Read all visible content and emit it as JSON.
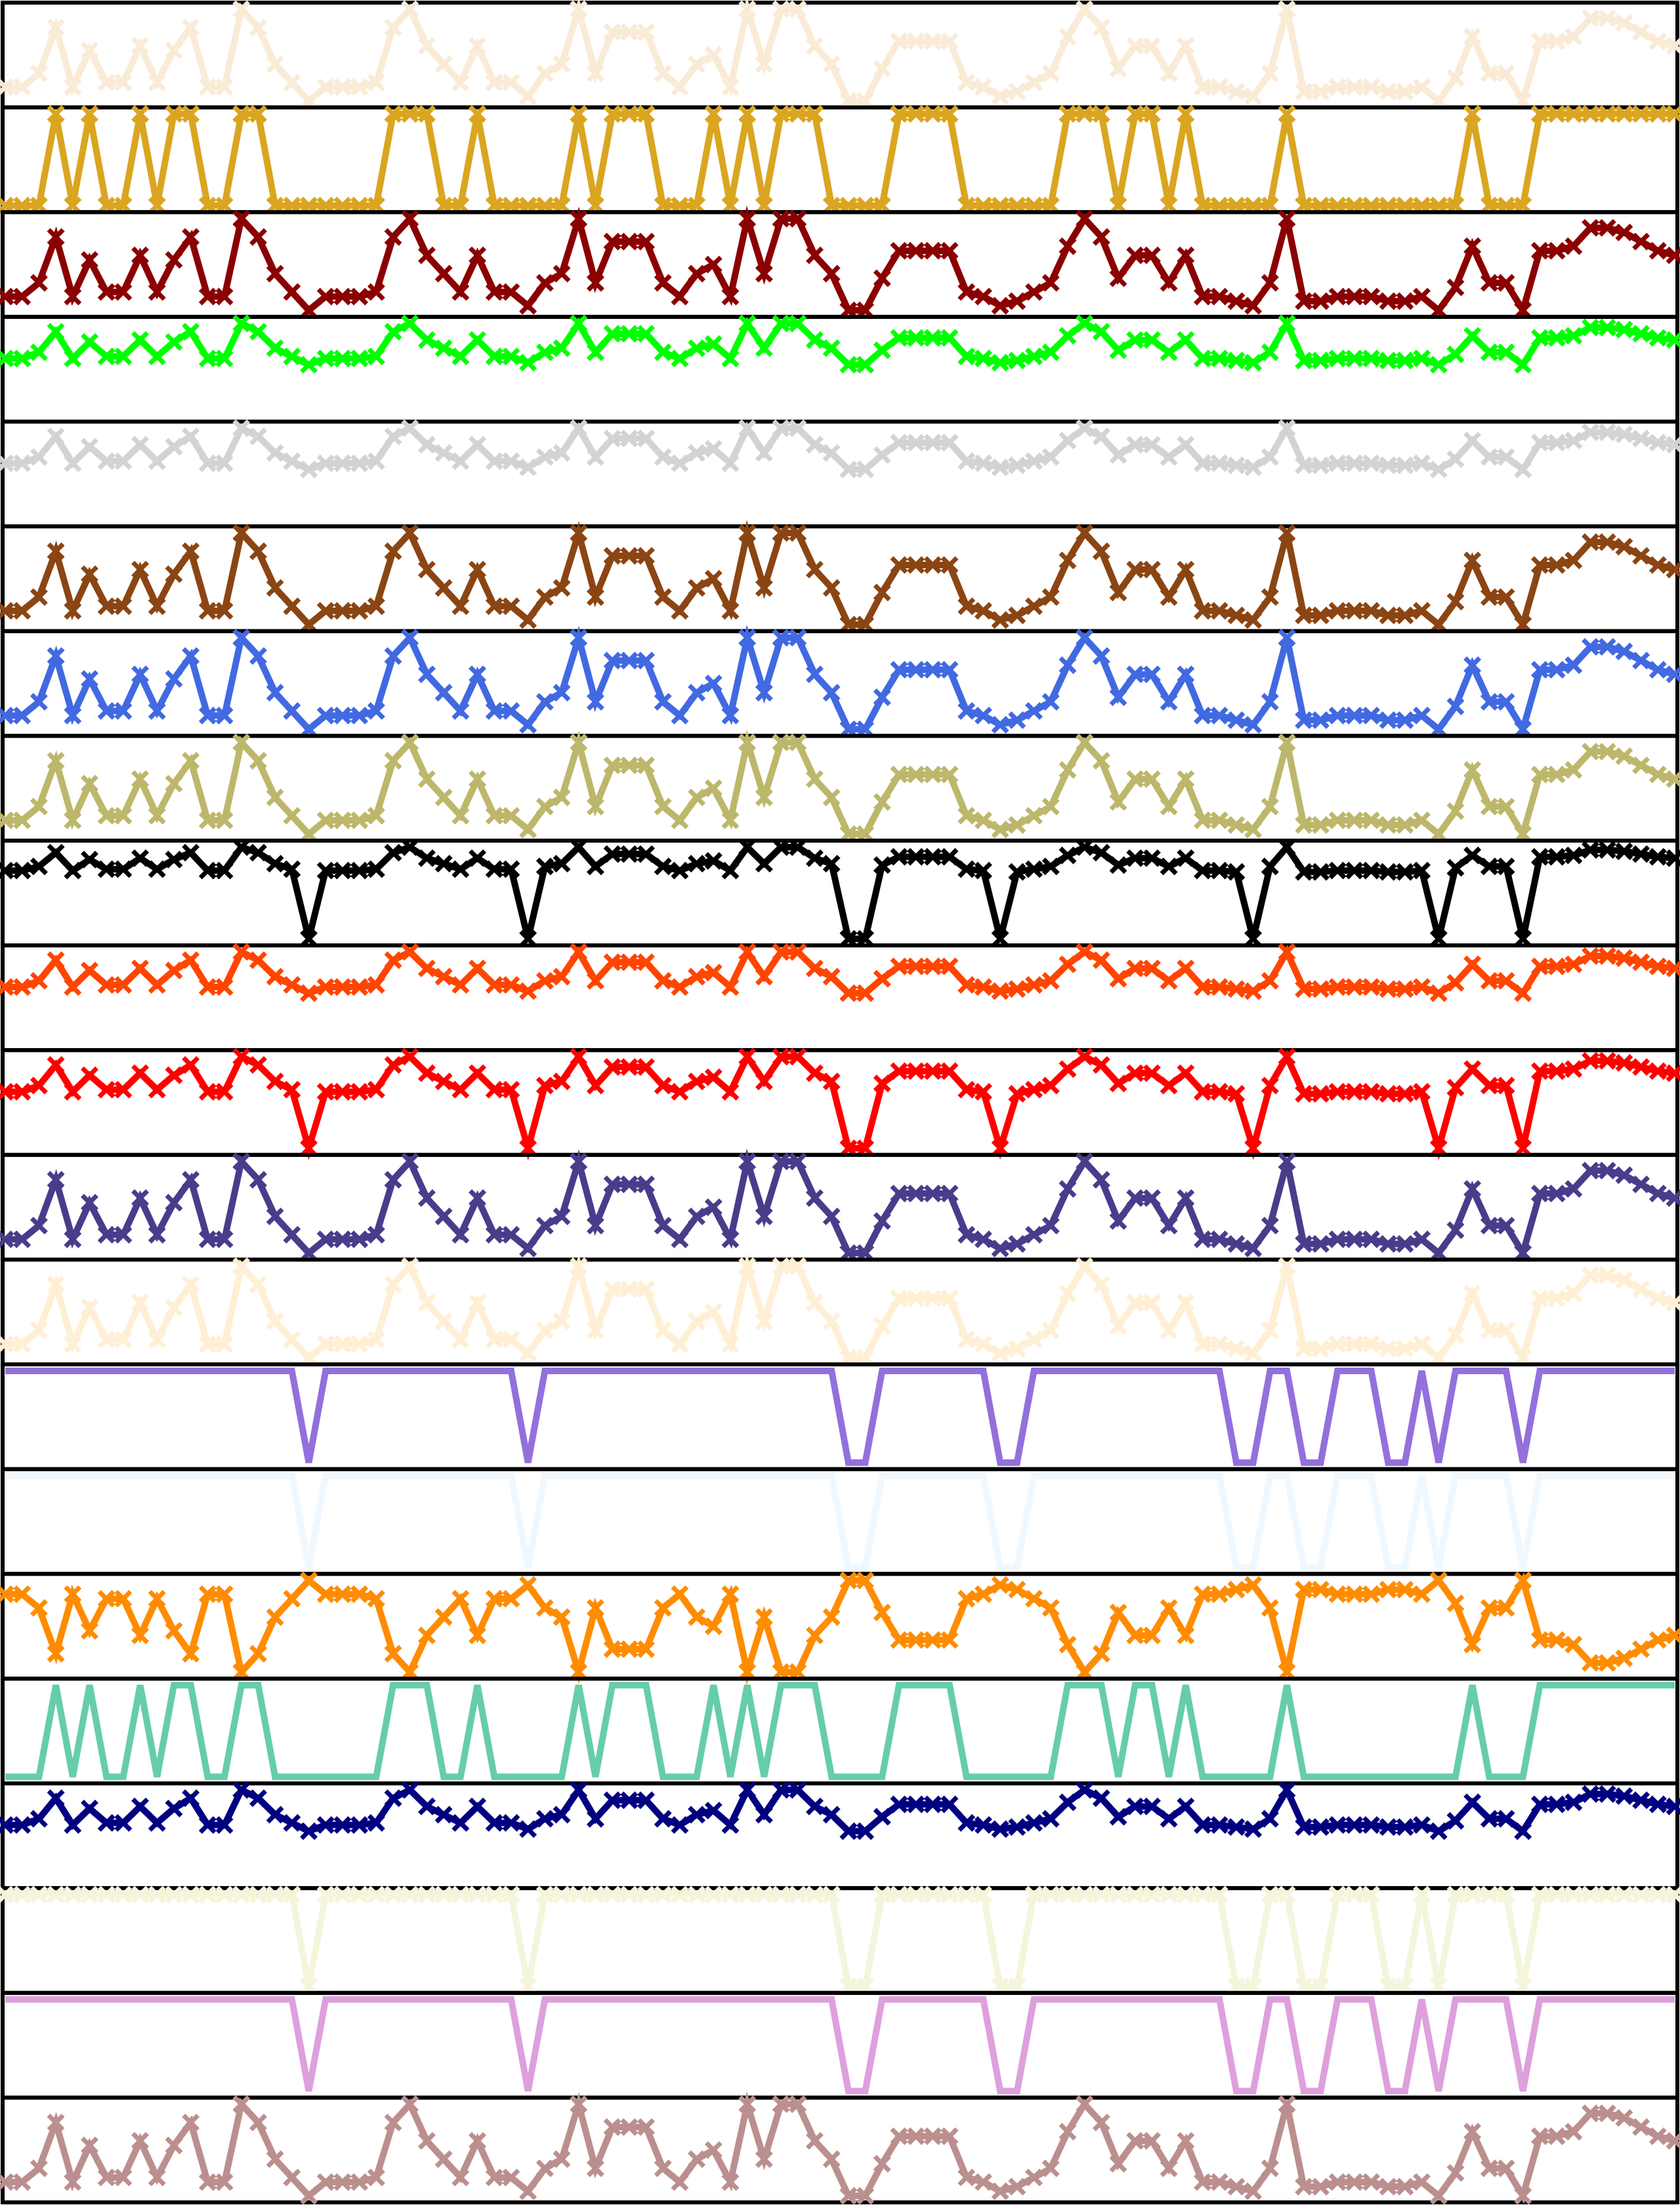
{
  "chart_data": {
    "type": "line",
    "title": "",
    "xlabel": "",
    "ylabel": "",
    "marker": "x",
    "axes_frame": true,
    "grid": false,
    "legend": "none",
    "x": [
      0,
      1,
      2,
      3,
      4,
      5,
      6,
      7,
      8,
      9,
      10,
      11,
      12,
      13,
      14,
      15,
      16,
      17,
      18,
      19,
      20,
      21,
      22,
      23,
      24,
      25,
      26,
      27,
      28,
      29,
      30,
      31,
      32,
      33,
      34,
      35,
      36,
      37,
      38,
      39,
      40,
      41,
      42,
      43,
      44,
      45,
      46,
      47,
      48,
      49,
      50,
      51,
      52,
      53,
      54,
      55,
      56,
      57,
      58,
      59,
      60,
      61,
      62,
      63,
      64,
      65,
      66,
      67,
      68,
      69,
      70,
      71,
      72,
      73,
      74,
      75,
      76,
      77,
      78,
      79,
      80,
      81,
      82,
      83,
      84,
      85,
      86,
      87,
      88,
      89,
      90,
      91,
      92,
      93,
      94,
      95,
      96,
      97,
      98,
      99
    ],
    "base": [
      0.15,
      0.15,
      0.3,
      0.8,
      0.15,
      0.55,
      0.2,
      0.2,
      0.6,
      0.2,
      0.55,
      0.8,
      0.15,
      0.15,
      1.0,
      0.8,
      0.4,
      0.2,
      0.0,
      0.15,
      0.15,
      0.15,
      0.2,
      0.8,
      1.0,
      0.6,
      0.4,
      0.2,
      0.6,
      0.2,
      0.2,
      0.05,
      0.3,
      0.4,
      1.0,
      0.3,
      0.75,
      0.75,
      0.75,
      0.3,
      0.15,
      0.4,
      0.5,
      0.15,
      1.0,
      0.4,
      1.0,
      1.0,
      0.6,
      0.4,
      0.0,
      0.0,
      0.35,
      0.65,
      0.65,
      0.65,
      0.65,
      0.2,
      0.15,
      0.05,
      0.1,
      0.2,
      0.3,
      0.7,
      1.0,
      0.8,
      0.35,
      0.6,
      0.6,
      0.3,
      0.6,
      0.15,
      0.15,
      0.1,
      0.05,
      0.3,
      1.0,
      0.1,
      0.1,
      0.15,
      0.15,
      0.15,
      0.1,
      0.1,
      0.15,
      0.0,
      0.25,
      0.7,
      0.3,
      0.3,
      0.0,
      0.65,
      0.65,
      0.7,
      0.9,
      0.9,
      0.85,
      0.75,
      0.65,
      0.6
    ],
    "series": [
      {
        "color": "#FAEBD7",
        "mode": "raw",
        "markers": true
      },
      {
        "color": "#DAA520",
        "mode": "binary",
        "markers": true
      },
      {
        "color": "#8B0000",
        "mode": "raw",
        "markers": true
      },
      {
        "color": "#00FF00",
        "mode": "compress",
        "markers": true
      },
      {
        "color": "#D3D3D3",
        "mode": "compress",
        "markers": true
      },
      {
        "color": "#8B4513",
        "mode": "raw",
        "markers": true
      },
      {
        "color": "#4169E1",
        "mode": "raw",
        "markers": true
      },
      {
        "color": "#BDB76B",
        "mode": "raw",
        "markers": true
      },
      {
        "color": "#000000",
        "mode": "softclip",
        "markers": true
      },
      {
        "color": "#FF4500",
        "mode": "compress",
        "markers": true
      },
      {
        "color": "#FF0000",
        "mode": "softclip2",
        "markers": true
      },
      {
        "color": "#483D8B",
        "mode": "raw",
        "markers": true
      },
      {
        "color": "#FFEFD5",
        "mode": "raw",
        "markers": true
      },
      {
        "color": "#9370DB",
        "mode": "clip",
        "markers": false
      },
      {
        "color": "#F0F8FF",
        "mode": "clip",
        "markers": false
      },
      {
        "color": "#FF8C00",
        "mode": "inverse",
        "markers": true
      },
      {
        "color": "#66CDAA",
        "mode": "binary",
        "markers": false
      },
      {
        "color": "#000080",
        "mode": "compress",
        "markers": true
      },
      {
        "color": "#F5F5DC",
        "mode": "clip",
        "markers": true
      },
      {
        "color": "#DDA0DD",
        "mode": "clip",
        "markers": false
      },
      {
        "color": "#BC8F8F",
        "mode": "raw",
        "markers": true
      }
    ]
  }
}
